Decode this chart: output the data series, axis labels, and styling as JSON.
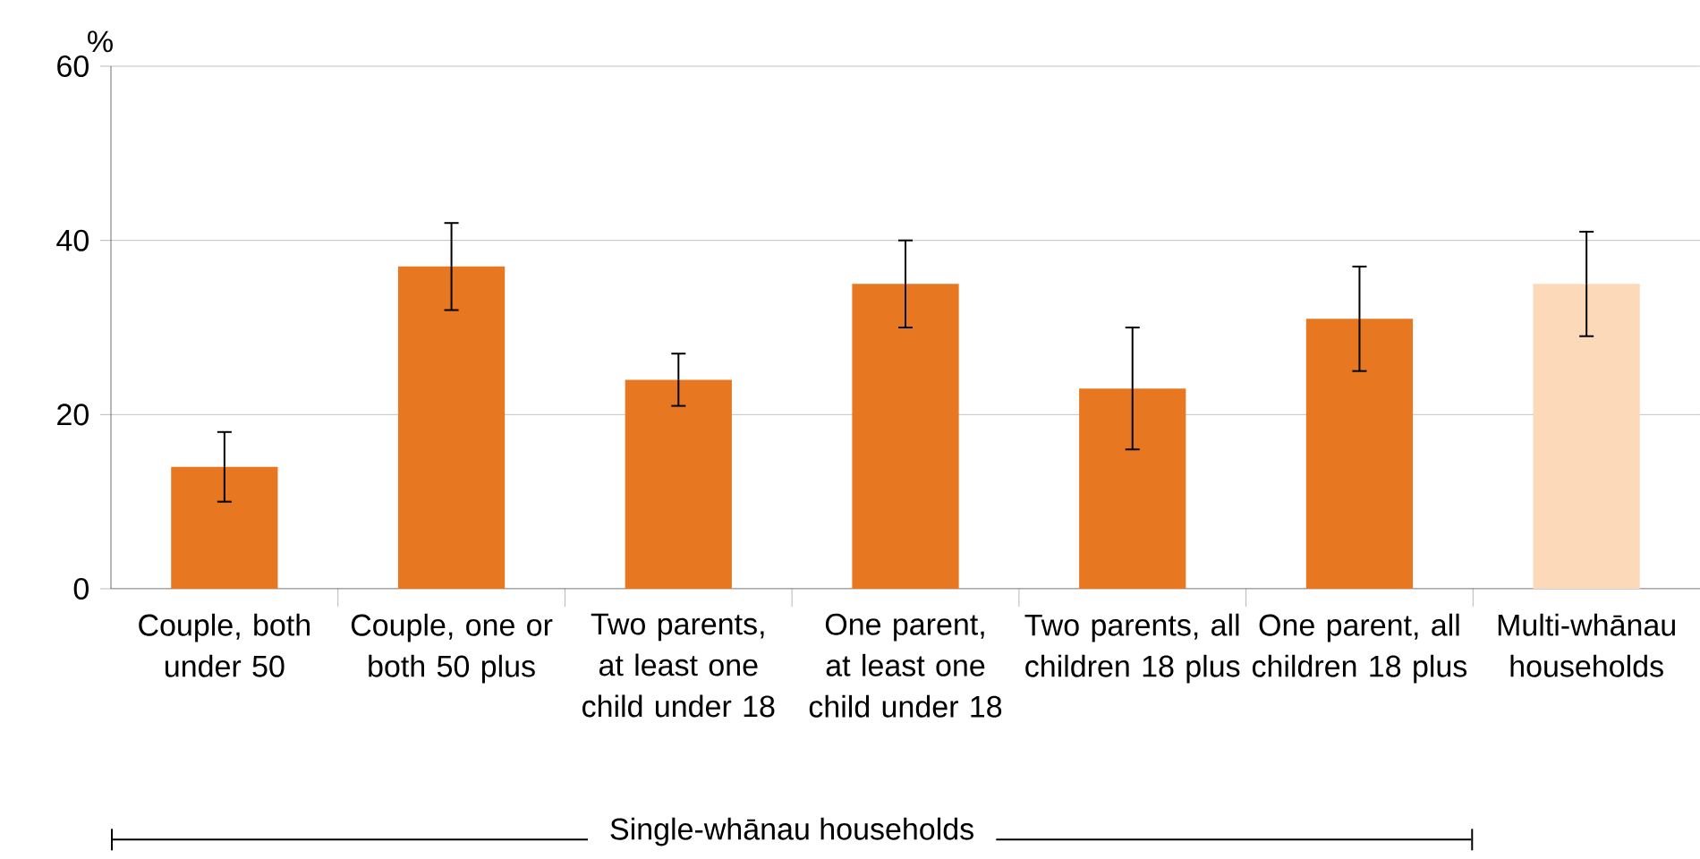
{
  "chart_data": {
    "type": "bar",
    "ylabel": "%",
    "categories": [
      "Couple, both under 50",
      "Couple, one or both 50 plus",
      "Two parents, at least one child under 18",
      "One parent, at least one child under 18",
      "Two parents, all children 18 plus",
      "One parent, all children 18 plus",
      "Multi-whānau households"
    ],
    "values": [
      14,
      37,
      24,
      35,
      23,
      31,
      35
    ],
    "errors": [
      [
        10,
        18
      ],
      [
        32,
        42
      ],
      [
        21,
        27
      ],
      [
        30,
        40
      ],
      [
        16,
        30
      ],
      [
        25,
        37
      ],
      [
        29,
        41
      ]
    ],
    "colors": [
      "#e87722",
      "#e87722",
      "#e87722",
      "#e87722",
      "#e87722",
      "#e87722",
      "#fcd9b8"
    ],
    "ylim": [
      0,
      60
    ],
    "yticks": [
      0,
      20,
      40,
      60
    ],
    "grid": "y",
    "annotations": [
      "Single-whānau households"
    ]
  }
}
